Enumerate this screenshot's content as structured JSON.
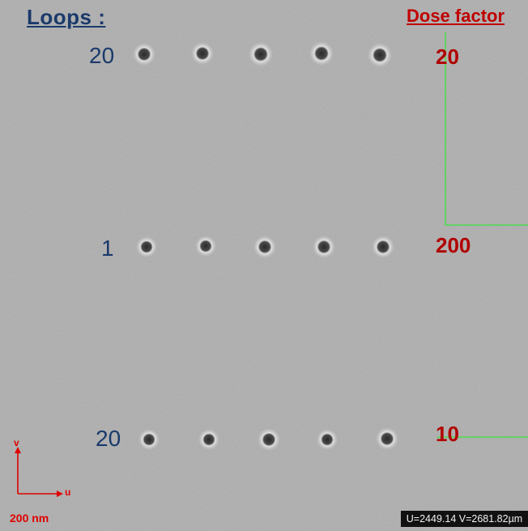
{
  "headers": {
    "loops": "Loops :",
    "dose_factor": "Dose factor"
  },
  "rows": [
    {
      "loops": "20",
      "dose": "20"
    },
    {
      "loops": "1",
      "dose": "200"
    },
    {
      "loops": "20",
      "dose": "10"
    }
  ],
  "axes": {
    "v": "v",
    "u": "u"
  },
  "scale_bar": "200 nm",
  "coordinates": "U=2449.14 V=2681.82µm",
  "colors": {
    "loops": "#1a3a6b",
    "dose": "#b00000",
    "guide_lines": "#4ddc4d",
    "axis": "#e00000"
  }
}
